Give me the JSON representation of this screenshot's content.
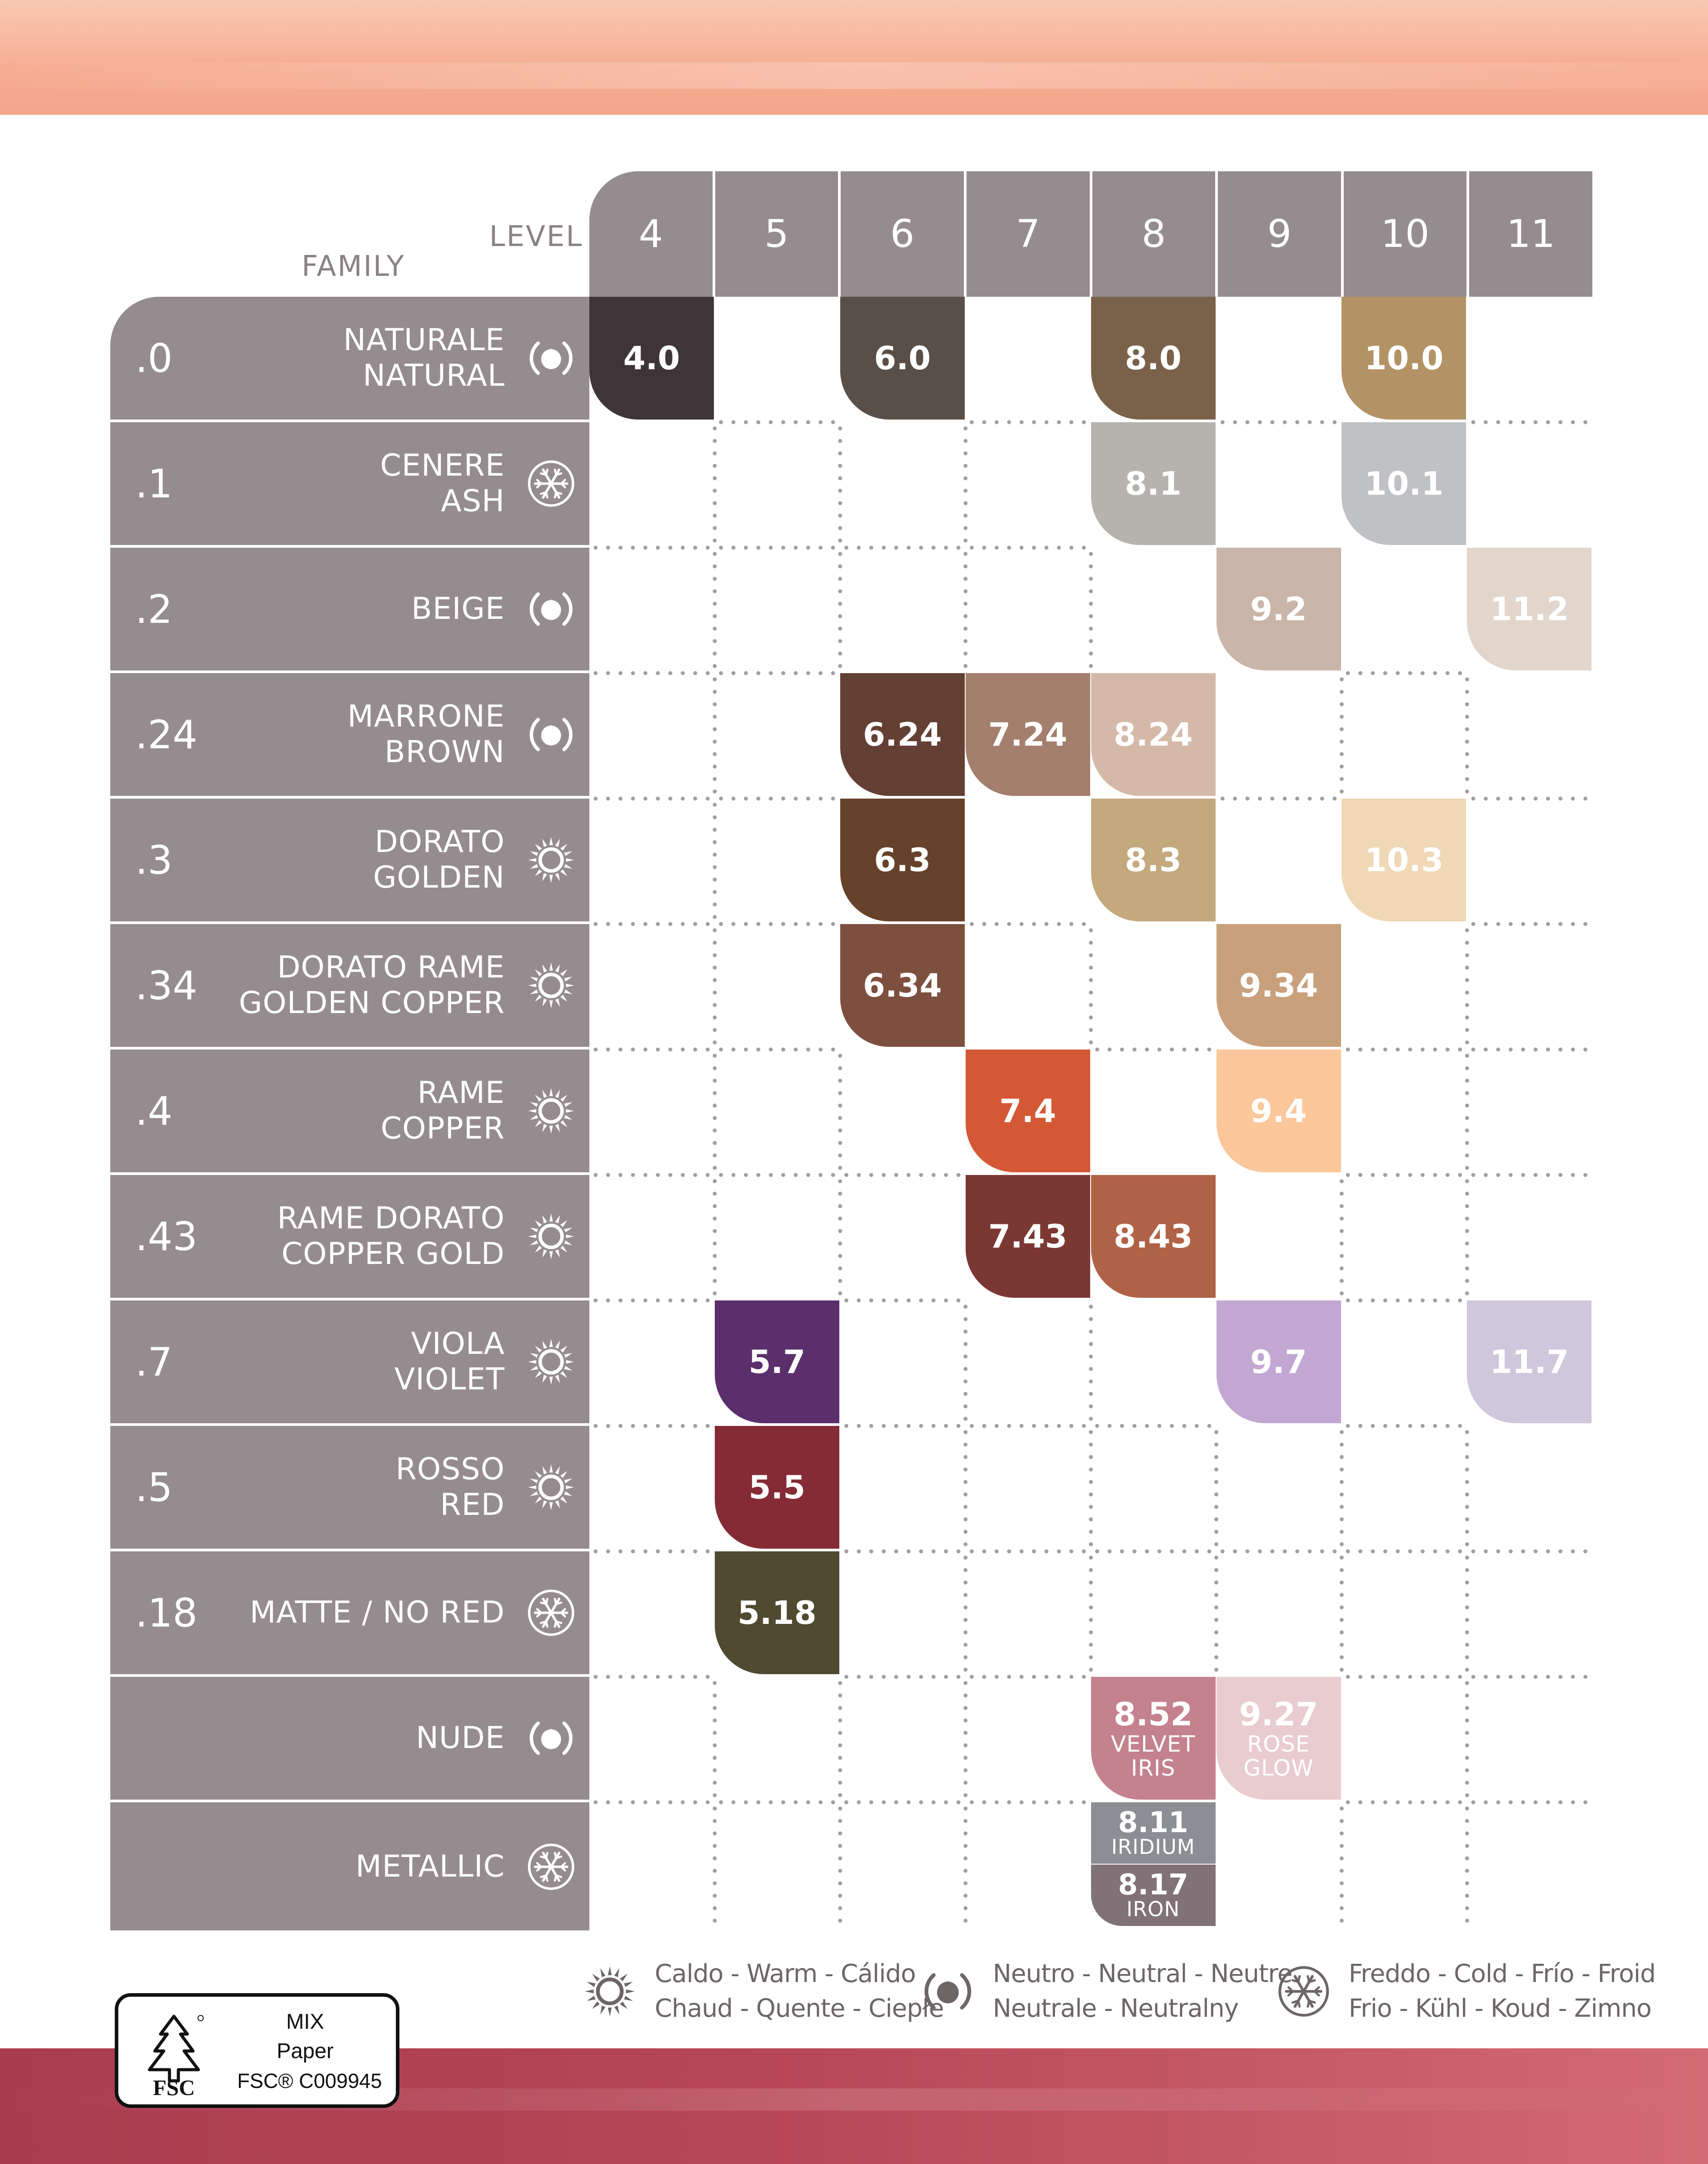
{
  "header": {
    "level_label": "LEVEL",
    "family_label": "FAMILY"
  },
  "levels": [
    "4",
    "5",
    "6",
    "7",
    "8",
    "9",
    "10",
    "11"
  ],
  "families": [
    {
      "code": ".0",
      "names": [
        "NATURALE",
        "NATURAL"
      ],
      "icon": "neutral-icon"
    },
    {
      "code": ".1",
      "names": [
        "CENERE",
        "ASH"
      ],
      "icon": "cold-icon"
    },
    {
      "code": ".2",
      "names": [
        "BEIGE"
      ],
      "icon": "neutral-icon"
    },
    {
      "code": ".24",
      "names": [
        "MARRONE",
        "BROWN"
      ],
      "icon": "neutral-icon"
    },
    {
      "code": ".3",
      "names": [
        "DORATO",
        "GOLDEN"
      ],
      "icon": "warm-icon"
    },
    {
      "code": ".34",
      "names": [
        "DORATO RAME",
        "GOLDEN COPPER"
      ],
      "icon": "warm-icon"
    },
    {
      "code": ".4",
      "names": [
        "RAME",
        "COPPER"
      ],
      "icon": "warm-icon"
    },
    {
      "code": ".43",
      "names": [
        "RAME DORATO",
        "COPPER GOLD"
      ],
      "icon": "warm-icon"
    },
    {
      "code": ".7",
      "names": [
        "VIOLA",
        "VIOLET"
      ],
      "icon": "warm-icon"
    },
    {
      "code": ".5",
      "names": [
        "ROSSO",
        "RED"
      ],
      "icon": "warm-icon"
    },
    {
      "code": ".18",
      "names": [
        "MATTE / NO RED"
      ],
      "icon": "cold-icon"
    },
    {
      "code": "",
      "names": [
        "NUDE"
      ],
      "icon": "neutral-icon"
    },
    {
      "code": "",
      "names": [
        "METALLIC"
      ],
      "icon": "cold-icon"
    }
  ],
  "swatches": [
    {
      "row": 0,
      "col": 0,
      "code": "4.0",
      "color": "#3e3538"
    },
    {
      "row": 0,
      "col": 2,
      "code": "6.0",
      "color": "#5a4f47"
    },
    {
      "row": 0,
      "col": 4,
      "code": "8.0",
      "color": "#7a624a"
    },
    {
      "row": 0,
      "col": 6,
      "code": "10.0",
      "color": "#b39366"
    },
    {
      "row": 1,
      "col": 4,
      "code": "8.1",
      "color": "#b6b2ad"
    },
    {
      "row": 1,
      "col": 6,
      "code": "10.1",
      "color": "#bfc1c4"
    },
    {
      "row": 2,
      "col": 5,
      "code": "9.2",
      "color": "#c9b5a9"
    },
    {
      "row": 2,
      "col": 7,
      "code": "11.2",
      "color": "#e2d6cc"
    },
    {
      "row": 3,
      "col": 2,
      "code": "6.24",
      "color": "#633f34"
    },
    {
      "row": 3,
      "col": 3,
      "code": "7.24",
      "color": "#a47f6d"
    },
    {
      "row": 3,
      "col": 4,
      "code": "8.24",
      "color": "#d5b9a8"
    },
    {
      "row": 4,
      "col": 2,
      "code": "6.3",
      "color": "#66422a"
    },
    {
      "row": 4,
      "col": 4,
      "code": "8.3",
      "color": "#c4a97e"
    },
    {
      "row": 4,
      "col": 6,
      "code": "10.3",
      "color": "#f0d8b6"
    },
    {
      "row": 5,
      "col": 2,
      "code": "6.34",
      "color": "#7d4f3e"
    },
    {
      "row": 5,
      "col": 5,
      "code": "9.34",
      "color": "#c8a07c"
    },
    {
      "row": 6,
      "col": 3,
      "code": "7.4",
      "color": "#d55834"
    },
    {
      "row": 6,
      "col": 5,
      "code": "9.4",
      "color": "#fbc79b"
    },
    {
      "row": 7,
      "col": 3,
      "code": "7.43",
      "color": "#7b3833"
    },
    {
      "row": 7,
      "col": 4,
      "code": "8.43",
      "color": "#b06246"
    },
    {
      "row": 8,
      "col": 1,
      "code": "5.7",
      "color": "#5b2f6c"
    },
    {
      "row": 8,
      "col": 5,
      "code": "9.7",
      "color": "#c2a7d3"
    },
    {
      "row": 8,
      "col": 7,
      "code": "11.7",
      "color": "#cfc7dc"
    },
    {
      "row": 9,
      "col": 1,
      "code": "5.5",
      "color": "#842b35"
    },
    {
      "row": 10,
      "col": 1,
      "code": "5.18",
      "color": "#4f4a30"
    },
    {
      "row": 11,
      "col": 4,
      "code": "8.52",
      "sub": [
        "VELVET",
        "IRIS"
      ],
      "color": "#c4828e"
    },
    {
      "row": 11,
      "col": 5,
      "code": "9.27",
      "sub": [
        "ROSE",
        "GLOW"
      ],
      "color": "#e9cccf"
    }
  ],
  "metallic_swatches": [
    {
      "code": "8.11",
      "sub": "IRIDIUM",
      "color": "#8b8e93"
    },
    {
      "code": "8.17",
      "sub": "IRON",
      "color": "#807277"
    }
  ],
  "legend": {
    "warm": {
      "icon": "sun-icon",
      "line1": "Caldo - Warm - Cálido",
      "line2": "Chaud - Quente - Ciepłe"
    },
    "neutral": {
      "icon": "neutral-icon",
      "line1": "Neutro - Neutral - Neutre",
      "line2": "Neutrale - Neutralny"
    },
    "cold": {
      "icon": "snowflake-icon",
      "line1": "Freddo - Cold - Frío - Froid",
      "line2": "Frio - Kühl - Koud - Zimno"
    }
  },
  "fsc": {
    "line1": "MIX",
    "line2": "Paper",
    "brand": "FSC",
    "license": "FSC® C009945"
  },
  "colors": {
    "header_gray": "#948c8e",
    "dots": "#a39d9f",
    "label_gray": "#8a8284"
  }
}
